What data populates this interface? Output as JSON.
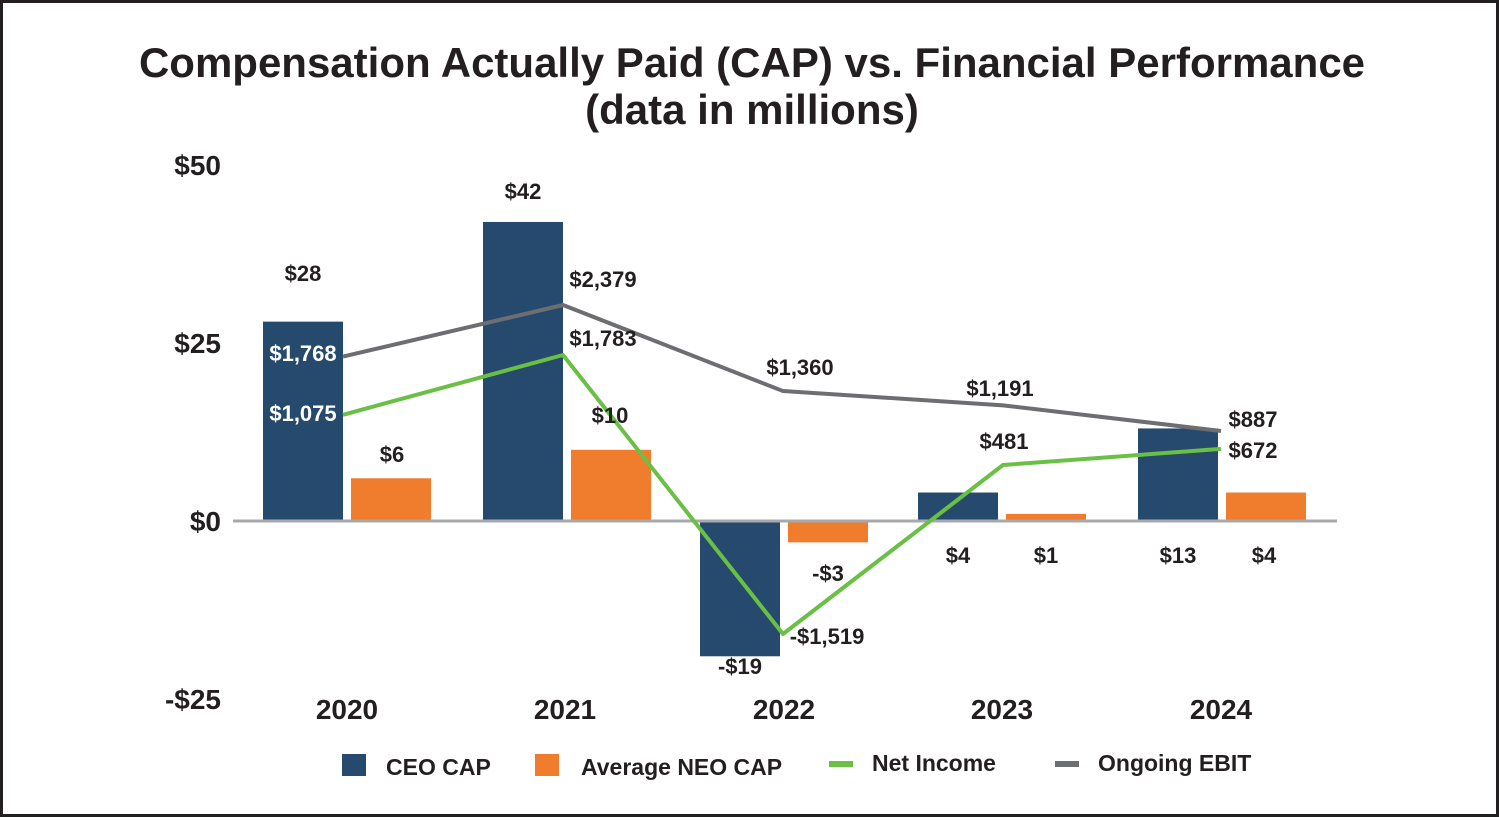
{
  "chart_data": {
    "type": "bar",
    "title": "Compensation Actually Paid (CAP) vs. Financial Performance",
    "subtitle": "(data in millions)",
    "categories": [
      "2020",
      "2021",
      "2022",
      "2023",
      "2024"
    ],
    "ylim": [
      -25,
      50
    ],
    "yticks": [
      50,
      25,
      0,
      -25
    ],
    "ytick_labels": [
      "$50",
      "$25",
      "$0",
      "-$25"
    ],
    "series": [
      {
        "name": "CEO CAP",
        "kind": "bar",
        "color": "#264a6e",
        "values": [
          28,
          42,
          -19,
          4,
          13
        ],
        "labels": [
          "$28",
          "$42",
          "-$19",
          "$4",
          "$13"
        ]
      },
      {
        "name": "Average NEO CAP",
        "kind": "bar",
        "color": "#ef7d2d",
        "values": [
          6,
          10,
          -3,
          1,
          4
        ],
        "labels": [
          "$6",
          "$10",
          "-$3",
          "$1",
          "$4"
        ]
      },
      {
        "name": "Net Income",
        "kind": "line",
        "color": "#6abf45",
        "values": [
          1075,
          1783,
          -1519,
          481,
          672
        ],
        "labels": [
          "$1,075",
          "$1,783",
          "-$1,519",
          "$481",
          "$672"
        ]
      },
      {
        "name": "Ongoing EBIT",
        "kind": "line",
        "color": "#6d6e71",
        "values": [
          1768,
          2379,
          1360,
          1191,
          887
        ],
        "labels": [
          "$1,768",
          "$2,379",
          "$1,360",
          "$1,191",
          "$887"
        ]
      }
    ],
    "legend_position": "bottom"
  }
}
